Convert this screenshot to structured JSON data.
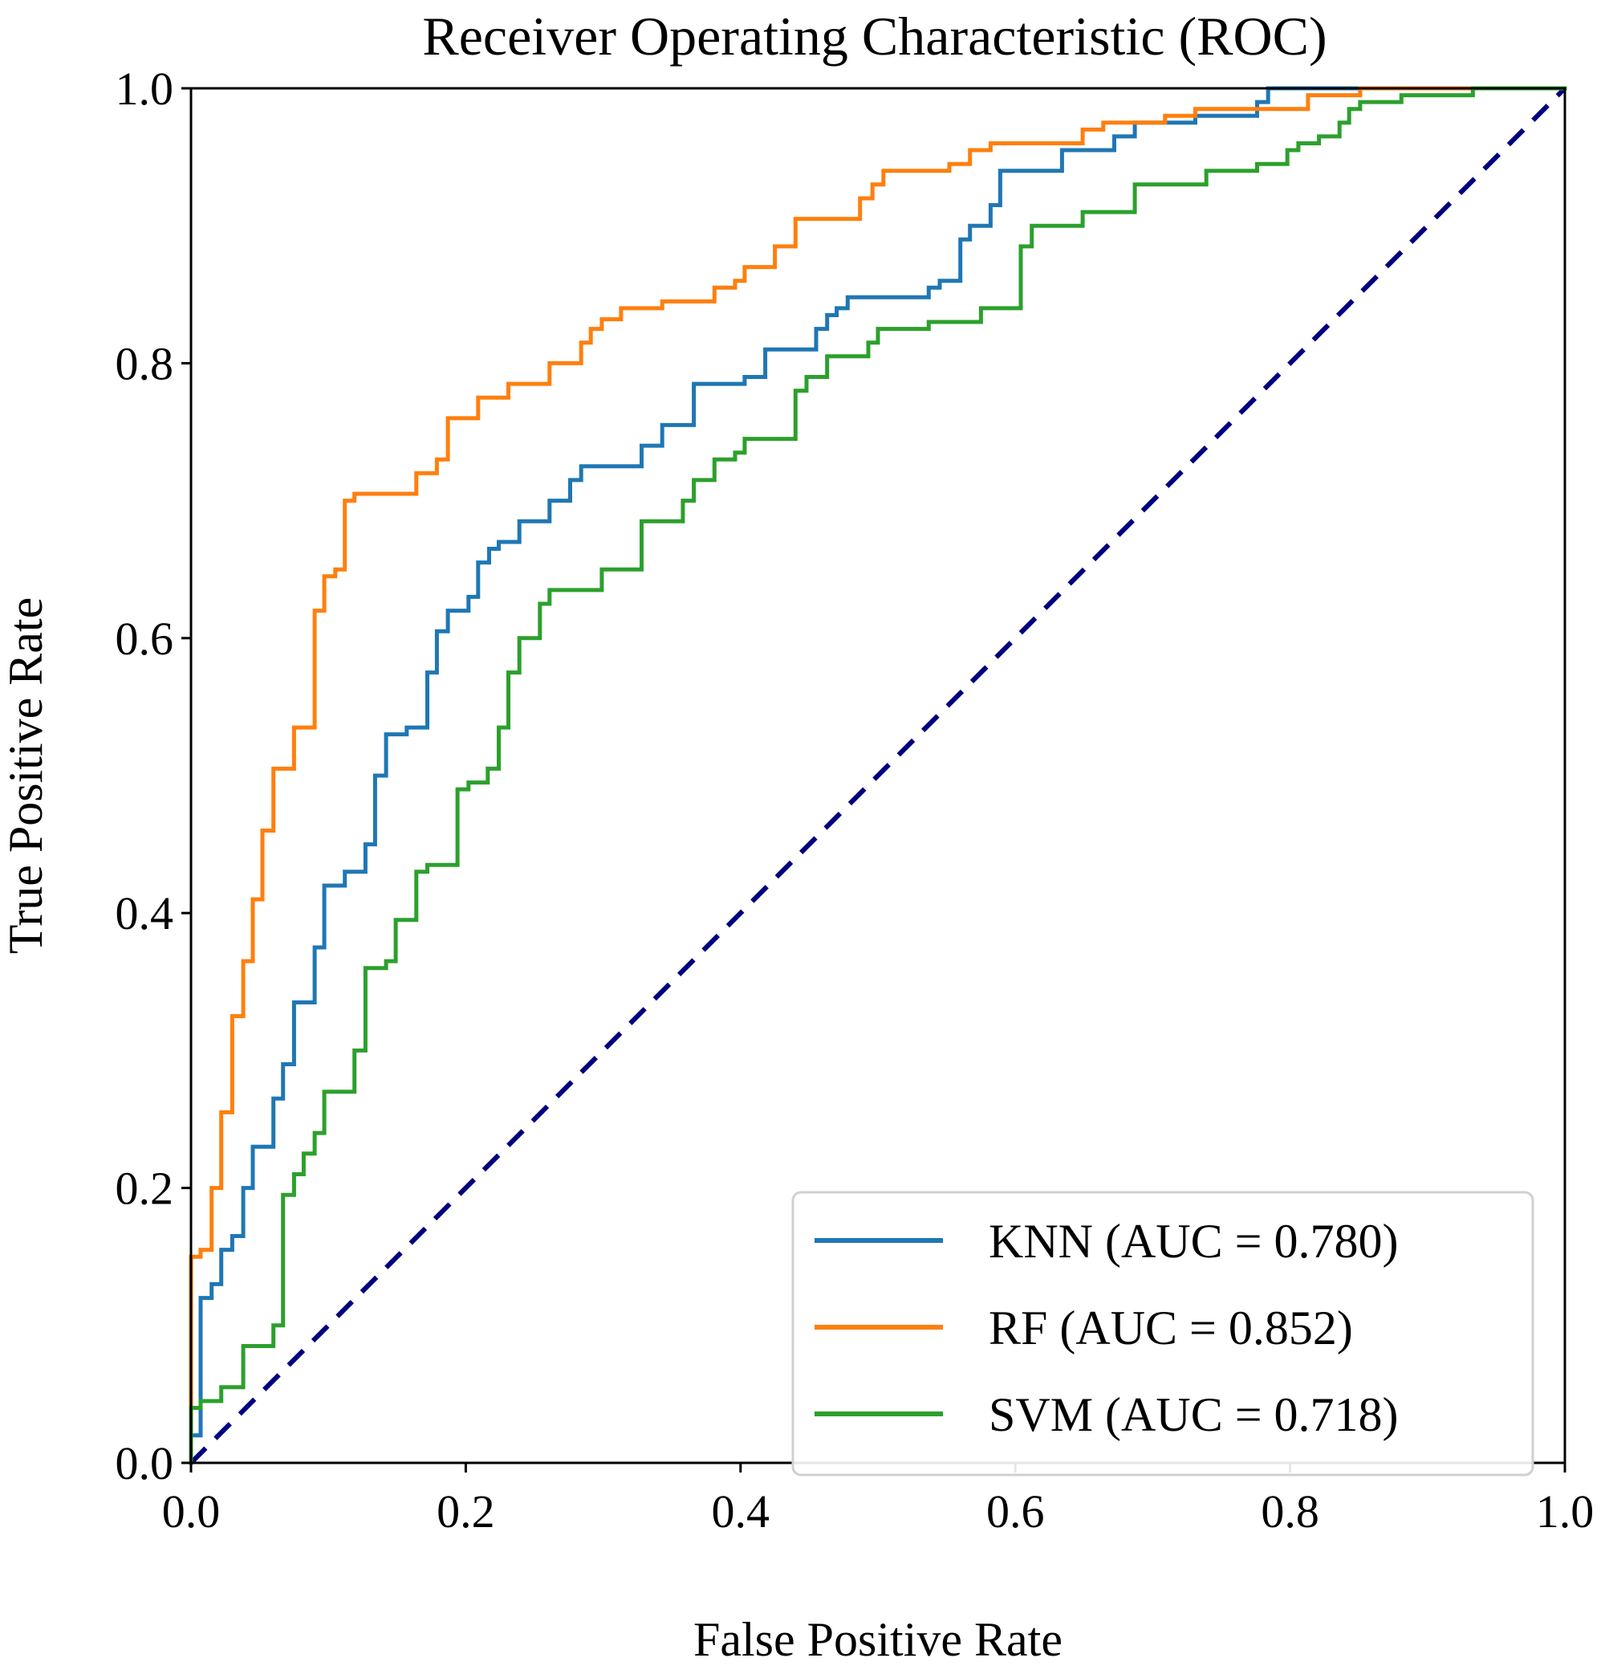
{
  "chart_data": {
    "type": "line",
    "title": "Receiver Operating Characteristic (ROC)",
    "xlabel": "False Positive Rate",
    "ylabel": "True Positive Rate",
    "xlim": [
      0,
      1
    ],
    "ylim": [
      0,
      1
    ],
    "xticks": [
      "0.0",
      "0.2",
      "0.4",
      "0.6",
      "0.8",
      "1.0"
    ],
    "yticks": [
      "0.0",
      "0.2",
      "0.4",
      "0.6",
      "0.8",
      "1.0"
    ],
    "grid": false,
    "legend_position": "lower-right",
    "series": [
      {
        "name": "KNN",
        "label": "KNN (AUC = 0.780)",
        "color": "#1f77b4",
        "points": [
          [
            0,
            0
          ],
          [
            0,
            0.02
          ],
          [
            0.007,
            0.02
          ],
          [
            0.007,
            0.12
          ],
          [
            0.015,
            0.12
          ],
          [
            0.015,
            0.13
          ],
          [
            0.022,
            0.13
          ],
          [
            0.022,
            0.155
          ],
          [
            0.03,
            0.155
          ],
          [
            0.03,
            0.165
          ],
          [
            0.038,
            0.165
          ],
          [
            0.038,
            0.2
          ],
          [
            0.045,
            0.2
          ],
          [
            0.045,
            0.23
          ],
          [
            0.06,
            0.23
          ],
          [
            0.06,
            0.265
          ],
          [
            0.067,
            0.265
          ],
          [
            0.067,
            0.29
          ],
          [
            0.075,
            0.29
          ],
          [
            0.075,
            0.335
          ],
          [
            0.09,
            0.335
          ],
          [
            0.09,
            0.375
          ],
          [
            0.097,
            0.375
          ],
          [
            0.097,
            0.42
          ],
          [
            0.112,
            0.42
          ],
          [
            0.112,
            0.43
          ],
          [
            0.127,
            0.43
          ],
          [
            0.127,
            0.45
          ],
          [
            0.134,
            0.45
          ],
          [
            0.134,
            0.5
          ],
          [
            0.142,
            0.5
          ],
          [
            0.142,
            0.53
          ],
          [
            0.157,
            0.53
          ],
          [
            0.157,
            0.535
          ],
          [
            0.172,
            0.535
          ],
          [
            0.172,
            0.575
          ],
          [
            0.179,
            0.575
          ],
          [
            0.179,
            0.605
          ],
          [
            0.187,
            0.605
          ],
          [
            0.187,
            0.62
          ],
          [
            0.202,
            0.62
          ],
          [
            0.202,
            0.63
          ],
          [
            0.209,
            0.63
          ],
          [
            0.209,
            0.655
          ],
          [
            0.217,
            0.655
          ],
          [
            0.217,
            0.665
          ],
          [
            0.224,
            0.665
          ],
          [
            0.224,
            0.67
          ],
          [
            0.239,
            0.67
          ],
          [
            0.239,
            0.685
          ],
          [
            0.261,
            0.685
          ],
          [
            0.261,
            0.7
          ],
          [
            0.276,
            0.7
          ],
          [
            0.276,
            0.715
          ],
          [
            0.284,
            0.715
          ],
          [
            0.284,
            0.725
          ],
          [
            0.328,
            0.725
          ],
          [
            0.328,
            0.74
          ],
          [
            0.343,
            0.74
          ],
          [
            0.343,
            0.755
          ],
          [
            0.366,
            0.755
          ],
          [
            0.366,
            0.785
          ],
          [
            0.403,
            0.785
          ],
          [
            0.403,
            0.79
          ],
          [
            0.418,
            0.79
          ],
          [
            0.418,
            0.81
          ],
          [
            0.455,
            0.81
          ],
          [
            0.455,
            0.825
          ],
          [
            0.463,
            0.825
          ],
          [
            0.463,
            0.835
          ],
          [
            0.47,
            0.835
          ],
          [
            0.47,
            0.84
          ],
          [
            0.478,
            0.84
          ],
          [
            0.478,
            0.848
          ],
          [
            0.537,
            0.848
          ],
          [
            0.537,
            0.855
          ],
          [
            0.545,
            0.855
          ],
          [
            0.545,
            0.86
          ],
          [
            0.56,
            0.86
          ],
          [
            0.56,
            0.89
          ],
          [
            0.567,
            0.89
          ],
          [
            0.567,
            0.9
          ],
          [
            0.582,
            0.9
          ],
          [
            0.582,
            0.915
          ],
          [
            0.589,
            0.915
          ],
          [
            0.589,
            0.94
          ],
          [
            0.634,
            0.94
          ],
          [
            0.634,
            0.955
          ],
          [
            0.672,
            0.955
          ],
          [
            0.672,
            0.965
          ],
          [
            0.687,
            0.965
          ],
          [
            0.687,
            0.975
          ],
          [
            0.731,
            0.975
          ],
          [
            0.731,
            0.98
          ],
          [
            0.776,
            0.98
          ],
          [
            0.776,
            0.99
          ],
          [
            0.784,
            0.99
          ],
          [
            0.784,
            1.0
          ],
          [
            1.0,
            1.0
          ]
        ]
      },
      {
        "name": "RF",
        "label": "RF (AUC = 0.852)",
        "color": "#ff7f0e",
        "points": [
          [
            0,
            0
          ],
          [
            0,
            0.15
          ],
          [
            0.007,
            0.15
          ],
          [
            0.007,
            0.155
          ],
          [
            0.015,
            0.155
          ],
          [
            0.015,
            0.2
          ],
          [
            0.022,
            0.2
          ],
          [
            0.022,
            0.255
          ],
          [
            0.03,
            0.255
          ],
          [
            0.03,
            0.325
          ],
          [
            0.038,
            0.325
          ],
          [
            0.038,
            0.365
          ],
          [
            0.045,
            0.365
          ],
          [
            0.045,
            0.41
          ],
          [
            0.052,
            0.41
          ],
          [
            0.052,
            0.46
          ],
          [
            0.06,
            0.46
          ],
          [
            0.06,
            0.505
          ],
          [
            0.075,
            0.505
          ],
          [
            0.075,
            0.535
          ],
          [
            0.09,
            0.535
          ],
          [
            0.09,
            0.62
          ],
          [
            0.097,
            0.62
          ],
          [
            0.097,
            0.645
          ],
          [
            0.105,
            0.645
          ],
          [
            0.105,
            0.65
          ],
          [
            0.112,
            0.65
          ],
          [
            0.112,
            0.7
          ],
          [
            0.119,
            0.7
          ],
          [
            0.119,
            0.705
          ],
          [
            0.164,
            0.705
          ],
          [
            0.164,
            0.72
          ],
          [
            0.179,
            0.72
          ],
          [
            0.179,
            0.73
          ],
          [
            0.187,
            0.73
          ],
          [
            0.187,
            0.76
          ],
          [
            0.209,
            0.76
          ],
          [
            0.209,
            0.775
          ],
          [
            0.231,
            0.775
          ],
          [
            0.231,
            0.785
          ],
          [
            0.261,
            0.785
          ],
          [
            0.261,
            0.8
          ],
          [
            0.284,
            0.8
          ],
          [
            0.284,
            0.815
          ],
          [
            0.291,
            0.815
          ],
          [
            0.291,
            0.825
          ],
          [
            0.299,
            0.825
          ],
          [
            0.299,
            0.832
          ],
          [
            0.313,
            0.832
          ],
          [
            0.313,
            0.84
          ],
          [
            0.343,
            0.84
          ],
          [
            0.343,
            0.845
          ],
          [
            0.381,
            0.845
          ],
          [
            0.381,
            0.855
          ],
          [
            0.396,
            0.855
          ],
          [
            0.396,
            0.86
          ],
          [
            0.403,
            0.86
          ],
          [
            0.403,
            0.87
          ],
          [
            0.425,
            0.87
          ],
          [
            0.425,
            0.885
          ],
          [
            0.44,
            0.885
          ],
          [
            0.44,
            0.905
          ],
          [
            0.487,
            0.905
          ],
          [
            0.487,
            0.92
          ],
          [
            0.496,
            0.92
          ],
          [
            0.496,
            0.93
          ],
          [
            0.504,
            0.93
          ],
          [
            0.504,
            0.94
          ],
          [
            0.552,
            0.94
          ],
          [
            0.552,
            0.945
          ],
          [
            0.567,
            0.945
          ],
          [
            0.567,
            0.955
          ],
          [
            0.582,
            0.955
          ],
          [
            0.582,
            0.96
          ],
          [
            0.649,
            0.96
          ],
          [
            0.649,
            0.97
          ],
          [
            0.664,
            0.97
          ],
          [
            0.664,
            0.975
          ],
          [
            0.709,
            0.975
          ],
          [
            0.709,
            0.98
          ],
          [
            0.731,
            0.98
          ],
          [
            0.731,
            0.985
          ],
          [
            0.813,
            0.985
          ],
          [
            0.813,
            0.995
          ],
          [
            0.851,
            0.995
          ],
          [
            0.851,
            1.0
          ],
          [
            1.0,
            1.0
          ]
        ]
      },
      {
        "name": "SVM",
        "label": "SVM (AUC = 0.718)",
        "color": "#2ca02c",
        "points": [
          [
            0,
            0
          ],
          [
            0,
            0.04
          ],
          [
            0.007,
            0.04
          ],
          [
            0.007,
            0.045
          ],
          [
            0.022,
            0.045
          ],
          [
            0.022,
            0.055
          ],
          [
            0.038,
            0.055
          ],
          [
            0.038,
            0.085
          ],
          [
            0.06,
            0.085
          ],
          [
            0.06,
            0.1
          ],
          [
            0.067,
            0.1
          ],
          [
            0.067,
            0.195
          ],
          [
            0.075,
            0.195
          ],
          [
            0.075,
            0.21
          ],
          [
            0.082,
            0.21
          ],
          [
            0.082,
            0.225
          ],
          [
            0.09,
            0.225
          ],
          [
            0.09,
            0.24
          ],
          [
            0.097,
            0.24
          ],
          [
            0.097,
            0.27
          ],
          [
            0.119,
            0.27
          ],
          [
            0.119,
            0.3
          ],
          [
            0.127,
            0.3
          ],
          [
            0.127,
            0.36
          ],
          [
            0.142,
            0.36
          ],
          [
            0.142,
            0.365
          ],
          [
            0.149,
            0.365
          ],
          [
            0.149,
            0.395
          ],
          [
            0.164,
            0.395
          ],
          [
            0.164,
            0.43
          ],
          [
            0.172,
            0.43
          ],
          [
            0.172,
            0.435
          ],
          [
            0.194,
            0.435
          ],
          [
            0.194,
            0.49
          ],
          [
            0.202,
            0.49
          ],
          [
            0.202,
            0.495
          ],
          [
            0.216,
            0.495
          ],
          [
            0.216,
            0.505
          ],
          [
            0.224,
            0.505
          ],
          [
            0.224,
            0.535
          ],
          [
            0.231,
            0.535
          ],
          [
            0.231,
            0.575
          ],
          [
            0.239,
            0.575
          ],
          [
            0.239,
            0.6
          ],
          [
            0.254,
            0.6
          ],
          [
            0.254,
            0.625
          ],
          [
            0.261,
            0.625
          ],
          [
            0.261,
            0.635
          ],
          [
            0.299,
            0.635
          ],
          [
            0.299,
            0.65
          ],
          [
            0.328,
            0.65
          ],
          [
            0.328,
            0.685
          ],
          [
            0.358,
            0.685
          ],
          [
            0.358,
            0.7
          ],
          [
            0.366,
            0.7
          ],
          [
            0.366,
            0.715
          ],
          [
            0.381,
            0.715
          ],
          [
            0.381,
            0.73
          ],
          [
            0.396,
            0.73
          ],
          [
            0.396,
            0.735
          ],
          [
            0.403,
            0.735
          ],
          [
            0.403,
            0.745
          ],
          [
            0.44,
            0.745
          ],
          [
            0.44,
            0.78
          ],
          [
            0.448,
            0.78
          ],
          [
            0.448,
            0.79
          ],
          [
            0.463,
            0.79
          ],
          [
            0.463,
            0.805
          ],
          [
            0.493,
            0.805
          ],
          [
            0.493,
            0.815
          ],
          [
            0.5,
            0.815
          ],
          [
            0.5,
            0.825
          ],
          [
            0.537,
            0.825
          ],
          [
            0.537,
            0.83
          ],
          [
            0.575,
            0.83
          ],
          [
            0.575,
            0.84
          ],
          [
            0.604,
            0.84
          ],
          [
            0.604,
            0.885
          ],
          [
            0.612,
            0.885
          ],
          [
            0.612,
            0.9
          ],
          [
            0.649,
            0.9
          ],
          [
            0.649,
            0.91
          ],
          [
            0.687,
            0.91
          ],
          [
            0.687,
            0.93
          ],
          [
            0.739,
            0.93
          ],
          [
            0.739,
            0.94
          ],
          [
            0.776,
            0.94
          ],
          [
            0.776,
            0.945
          ],
          [
            0.798,
            0.945
          ],
          [
            0.798,
            0.955
          ],
          [
            0.806,
            0.955
          ],
          [
            0.806,
            0.96
          ],
          [
            0.821,
            0.96
          ],
          [
            0.821,
            0.965
          ],
          [
            0.836,
            0.965
          ],
          [
            0.836,
            0.975
          ],
          [
            0.843,
            0.975
          ],
          [
            0.843,
            0.985
          ],
          [
            0.851,
            0.985
          ],
          [
            0.851,
            0.99
          ],
          [
            0.881,
            0.99
          ],
          [
            0.881,
            0.995
          ],
          [
            0.933,
            0.995
          ],
          [
            0.933,
            1.0
          ],
          [
            1.0,
            1.0
          ]
        ]
      }
    ],
    "reference_line": {
      "name": "chance",
      "color": "#000080",
      "points": [
        [
          0,
          0
        ],
        [
          1,
          1
        ]
      ]
    }
  }
}
